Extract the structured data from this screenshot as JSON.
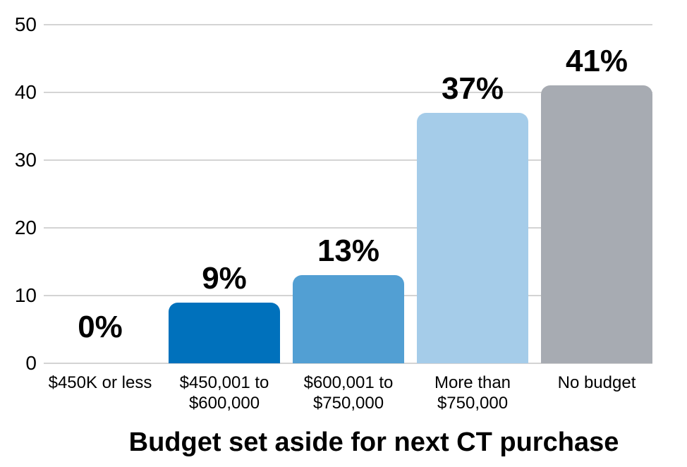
{
  "chart_data": {
    "type": "bar",
    "title": "Budget set aside for next CT purchase",
    "categories": [
      "$450K or less",
      "$450,001 to $600,000",
      "$600,001 to $750,000",
      "More than $750,000",
      "No budget"
    ],
    "values": [
      0,
      9,
      13,
      37,
      41
    ],
    "data_labels": [
      "0%",
      "9%",
      "13%",
      "37%",
      "41%"
    ],
    "bar_colors": [
      "#0071BC",
      "#0071BC",
      "#529FD3",
      "#A5CCE9",
      "#A7ABB2"
    ],
    "y_ticks": [
      0,
      10,
      20,
      30,
      40,
      50
    ],
    "ylim": [
      0,
      50
    ],
    "xlabel": "",
    "ylabel": "",
    "grid": true,
    "legend": "none",
    "colors": {
      "grid": "#D4D4D4",
      "text": "#000000",
      "background": "#FFFFFF"
    }
  }
}
